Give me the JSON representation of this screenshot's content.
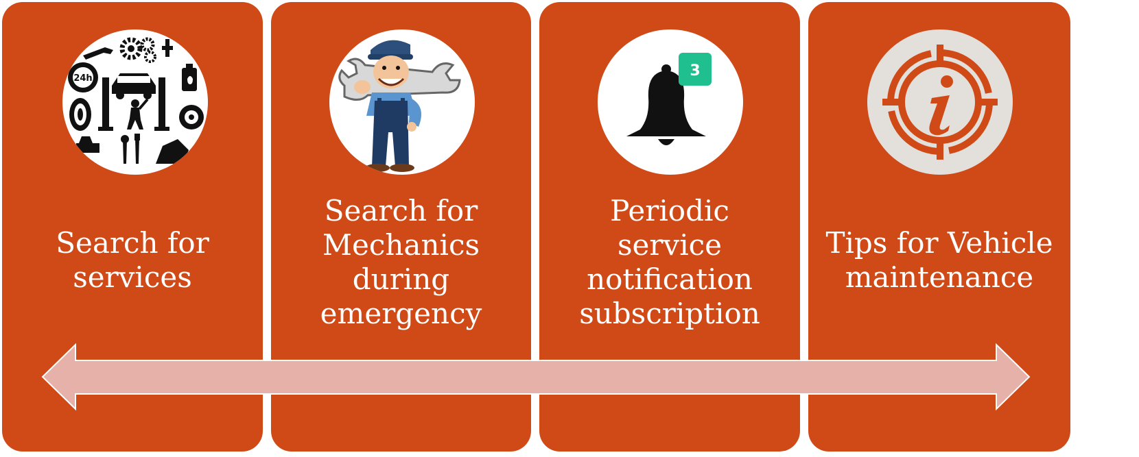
{
  "colors": {
    "card": "#D04A17",
    "arrow_fill": "#E6B1A9",
    "arrow_stroke": "#ffffff",
    "badge": "#1FBF8F"
  },
  "cards": [
    {
      "label_line1": "Search for",
      "label_line2": "services",
      "icon": "car-service-tools-icon"
    },
    {
      "label_line1": "Search for",
      "label_line2": "Mechanics",
      "label_line3": "during",
      "label_line4": "emergency",
      "icon": "mechanic-with-wrench-icon"
    },
    {
      "label_line1": "Periodic",
      "label_line2": "service",
      "label_line3": "notification",
      "label_line4": "subscription",
      "icon": "notification-bell-icon",
      "badge_count": "3"
    },
    {
      "label_line1": "Tips for Vehicle",
      "label_line2": "maintenance",
      "icon": "info-icon"
    }
  ]
}
